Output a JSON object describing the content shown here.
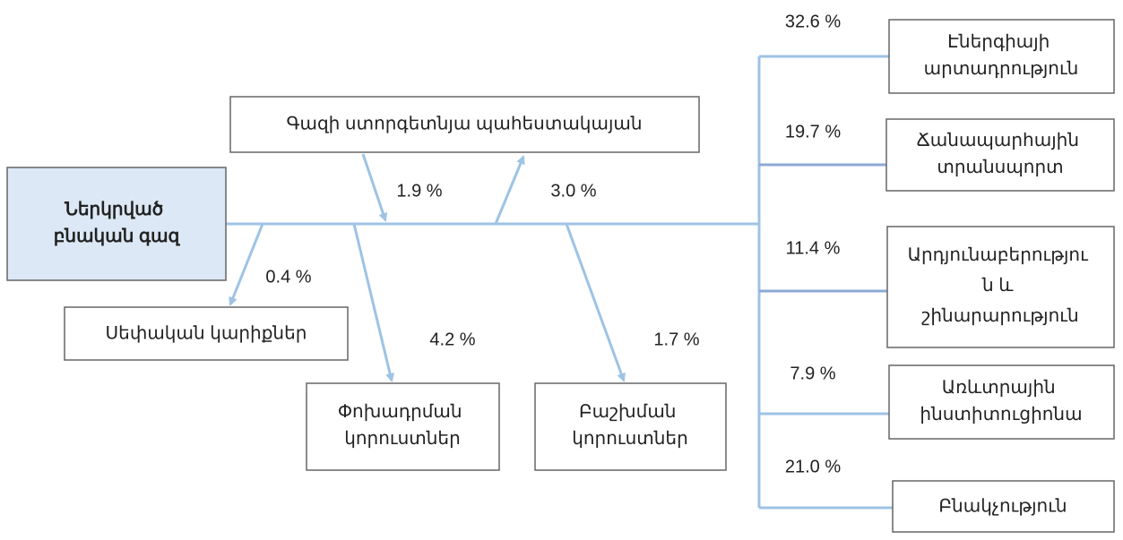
{
  "nodes": [
    {
      "lines": [
        "Ներկրված",
        "բնական գազ"
      ]
    },
    {
      "lines": [
        "Գազի ստորգետնյա պահեստակայան"
      ]
    },
    {
      "lines": [
        "Սեփական կարիքներ"
      ]
    },
    {
      "lines": [
        "Փոխադրման",
        "կորուստներ"
      ]
    },
    {
      "lines": [
        "Բաշխման",
        "կորուստներ"
      ]
    },
    {
      "lines": [
        "Էներգիայի",
        "արտադրություն"
      ]
    },
    {
      "lines": [
        "Ճանապարհային",
        "տրանսպորտ"
      ]
    },
    {
      "lines": [
        "Արդյունաբերությու",
        "ն և",
        "շինարարություն"
      ]
    },
    {
      "lines": [
        "Առևտրային",
        "ինստիտուցիոնա"
      ]
    },
    {
      "lines": [
        "Բնակչություն"
      ]
    }
  ],
  "flows": [
    "1.9 %",
    "3.0 %",
    "0.4 %",
    "4.2 %",
    "1.7 %",
    "32.6 %",
    "19.7 %",
    "11.4 %",
    "7.9 %",
    "21.0 %"
  ]
}
